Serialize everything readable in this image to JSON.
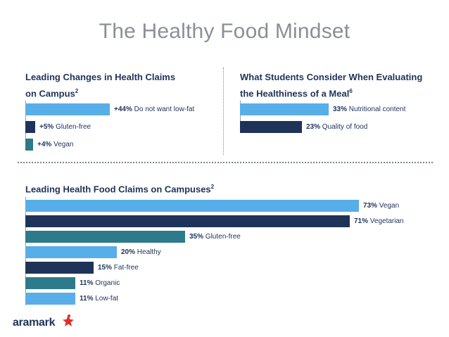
{
  "title": "The Healthy Food Mindset",
  "colors": {
    "light_blue": "#57aee8",
    "navy": "#1f3358",
    "teal": "#2d7a8a",
    "title_gray": "#8a8f98"
  },
  "chart_data": [
    {
      "type": "bar",
      "orientation": "horizontal",
      "title_line1": "Leading Changes in Health Claims",
      "title_line2": "on Campus",
      "title_sup": "2",
      "categories": [
        "Do not want low-fat",
        "Gluten-free",
        "Vegan"
      ],
      "values": [
        44,
        5,
        4
      ],
      "value_labels": [
        "+44%",
        "+5%",
        "+4%"
      ],
      "unit": "%",
      "colors": [
        "light_blue",
        "navy",
        "teal"
      ]
    },
    {
      "type": "bar",
      "orientation": "horizontal",
      "title_line1": "What Students Consider When Evaluating",
      "title_line2": "the Healthiness of a Meal",
      "title_sup": "6",
      "categories": [
        "Nutritional content",
        "Quality of food"
      ],
      "values": [
        33,
        23
      ],
      "value_labels": [
        "33%",
        "23%"
      ],
      "unit": "%",
      "colors": [
        "light_blue",
        "navy"
      ]
    },
    {
      "type": "bar",
      "orientation": "horizontal",
      "title_line1": "Leading Health Food Claims on Campuses",
      "title_sup": "2",
      "categories": [
        "Vegan",
        "Vegetarian",
        "Gluten-free",
        "Healthy",
        "Fat-free",
        "Organic",
        "Low-fat"
      ],
      "values": [
        73,
        71,
        35,
        20,
        15,
        11,
        11
      ],
      "value_labels": [
        "73%",
        "71%",
        "35%",
        "20%",
        "15%",
        "11%",
        "11%"
      ],
      "unit": "%",
      "colors": [
        "light_blue",
        "navy",
        "teal",
        "light_blue",
        "navy",
        "teal",
        "light_blue"
      ]
    }
  ],
  "brand": {
    "logo_text": "aramark"
  }
}
